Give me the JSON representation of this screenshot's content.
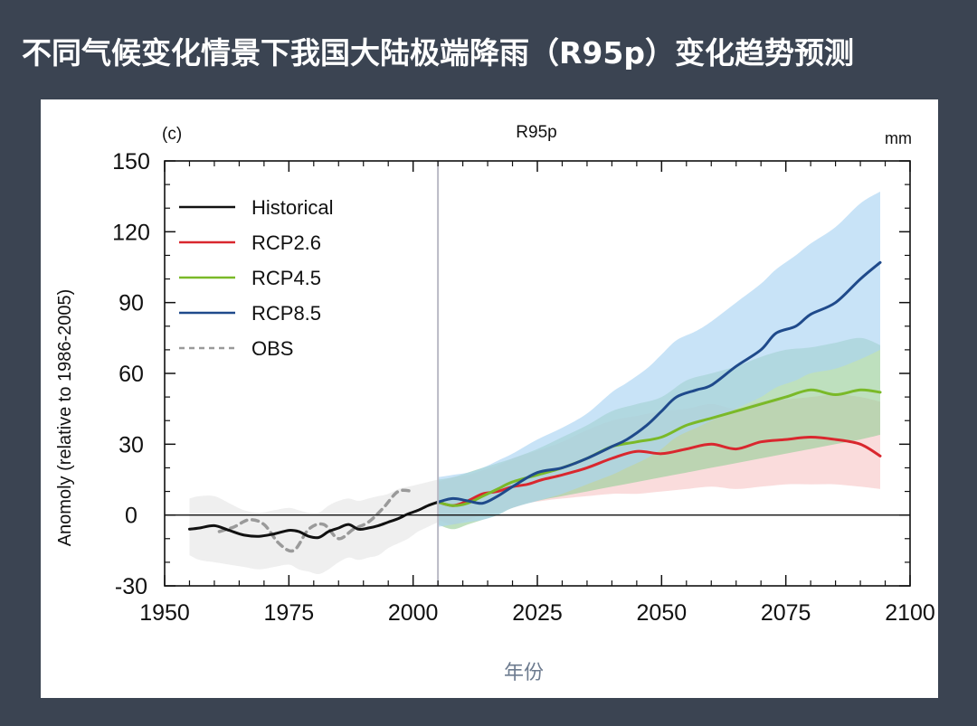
{
  "slide": {
    "title": "不同气候变化情景下我国大陆极端降雨（R95p）变化趋势预测",
    "background": "#3b4452"
  },
  "chart_data": {
    "type": "line",
    "panel_label": "(c)",
    "title": "R95p",
    "units": "mm",
    "xlabel": "年份",
    "ylabel": "Anomoly (relative to 1986-2005)",
    "xlim": [
      1950,
      2100
    ],
    "ylim": [
      -30,
      150
    ],
    "xticks": [
      1950,
      1975,
      2000,
      2025,
      2050,
      2075,
      2100
    ],
    "yticks": [
      -30,
      0,
      30,
      60,
      90,
      120,
      150
    ],
    "divider_year": 2005,
    "legend_position": "top-left",
    "series": [
      {
        "name": "Historical",
        "color": "#111111",
        "style": "solid",
        "x": [
          1955,
          1957,
          1960,
          1963,
          1966,
          1969,
          1972,
          1975,
          1977,
          1979,
          1981,
          1983,
          1985,
          1987,
          1989,
          1991,
          1993,
          1995,
          1997,
          1999,
          2001,
          2003,
          2005
        ],
        "y": [
          -6,
          -5.5,
          -4.5,
          -6.5,
          -8.5,
          -9,
          -8,
          -6.5,
          -7,
          -9,
          -9.5,
          -7,
          -5.5,
          -4,
          -6,
          -5.5,
          -4.5,
          -3,
          -1.5,
          0.5,
          2,
          4,
          5.5
        ],
        "band": {
          "color": "#e6e6e6",
          "upper": [
            7,
            8,
            8,
            5,
            2,
            1,
            2,
            3,
            2,
            1,
            1,
            4,
            6,
            7,
            6,
            7,
            8,
            9,
            11,
            12,
            13,
            14,
            15
          ],
          "lower": [
            -17,
            -19,
            -20,
            -21,
            -22,
            -23,
            -22,
            -21,
            -23,
            -24,
            -25,
            -23,
            -20,
            -18,
            -19,
            -18,
            -17,
            -14,
            -12,
            -10,
            -7,
            -5,
            -3
          ]
        }
      },
      {
        "name": "RCP2.6",
        "color": "#d9272e",
        "style": "solid",
        "x": [
          2005,
          2008,
          2011,
          2014,
          2017,
          2020,
          2023,
          2026,
          2030,
          2035,
          2040,
          2045,
          2050,
          2055,
          2060,
          2065,
          2070,
          2075,
          2080,
          2085,
          2090,
          2094
        ],
        "y": [
          5.5,
          4,
          6,
          9,
          10,
          12,
          13,
          15,
          17,
          20,
          24,
          27,
          26,
          28,
          30,
          28,
          31,
          32,
          33,
          32,
          30,
          25
        ],
        "band": {
          "color": "#f7caca",
          "upper": [
            14,
            16,
            17,
            19,
            21,
            24,
            26,
            28,
            31,
            36,
            40,
            42,
            44,
            45,
            47,
            45,
            48,
            49,
            50,
            51,
            50,
            48
          ],
          "lower": [
            -2,
            -4,
            -2,
            0,
            1,
            3,
            5,
            6,
            7,
            8,
            9,
            9,
            10,
            11,
            12,
            11,
            12,
            13,
            13,
            13,
            12,
            11
          ]
        }
      },
      {
        "name": "RCP4.5",
        "color": "#7ab928",
        "style": "solid",
        "x": [
          2005,
          2008,
          2011,
          2014,
          2017,
          2020,
          2025,
          2030,
          2035,
          2040,
          2045,
          2050,
          2055,
          2060,
          2065,
          2070,
          2075,
          2080,
          2085,
          2090,
          2094
        ],
        "y": [
          5.5,
          4,
          5,
          8,
          11,
          14,
          17,
          20,
          24,
          29,
          31,
          33,
          38,
          41,
          44,
          47,
          50,
          53,
          51,
          53,
          52
        ],
        "band": {
          "color": "#9bd09b",
          "upper": [
            15,
            16,
            18,
            20,
            22,
            24,
            28,
            33,
            38,
            44,
            47,
            50,
            57,
            60,
            63,
            67,
            70,
            71,
            73,
            75,
            72
          ],
          "lower": [
            -4,
            -6,
            -4,
            -2,
            0,
            3,
            6,
            8,
            10,
            12,
            14,
            16,
            18,
            20,
            22,
            24,
            26,
            28,
            30,
            32,
            34
          ]
        }
      },
      {
        "name": "RCP8.5",
        "color": "#1f4a8b",
        "style": "solid",
        "x": [
          2005,
          2008,
          2011,
          2014,
          2017,
          2020,
          2025,
          2030,
          2035,
          2040,
          2043,
          2047,
          2050,
          2053,
          2057,
          2060,
          2065,
          2070,
          2073,
          2077,
          2080,
          2085,
          2090,
          2094
        ],
        "y": [
          5.5,
          7,
          6,
          5,
          8,
          12,
          18,
          20,
          24,
          29,
          32,
          38,
          44,
          50,
          53,
          55,
          63,
          70,
          77,
          80,
          85,
          90,
          100,
          107
        ],
        "band": {
          "color": "#aad4f2",
          "upper": [
            16,
            17,
            18,
            20,
            23,
            26,
            32,
            37,
            43,
            52,
            56,
            62,
            68,
            74,
            78,
            82,
            90,
            98,
            104,
            110,
            115,
            122,
            132,
            137
          ],
          "lower": [
            -5,
            -4,
            -3,
            -2,
            0,
            3,
            6,
            9,
            13,
            17,
            20,
            24,
            28,
            33,
            37,
            40,
            45,
            50,
            54,
            57,
            60,
            62,
            66,
            70
          ]
        }
      },
      {
        "name": "OBS",
        "color": "#9a9a9a",
        "style": "dashed",
        "x": [
          1961,
          1964,
          1967,
          1970,
          1973,
          1976,
          1979,
          1982,
          1985,
          1988,
          1991,
          1994,
          1997,
          2000
        ],
        "y": [
          -7,
          -5,
          -2,
          -4,
          -12,
          -15,
          -6,
          -4,
          -10,
          -6,
          -3,
          3,
          10,
          10
        ],
        "band": null
      }
    ]
  }
}
